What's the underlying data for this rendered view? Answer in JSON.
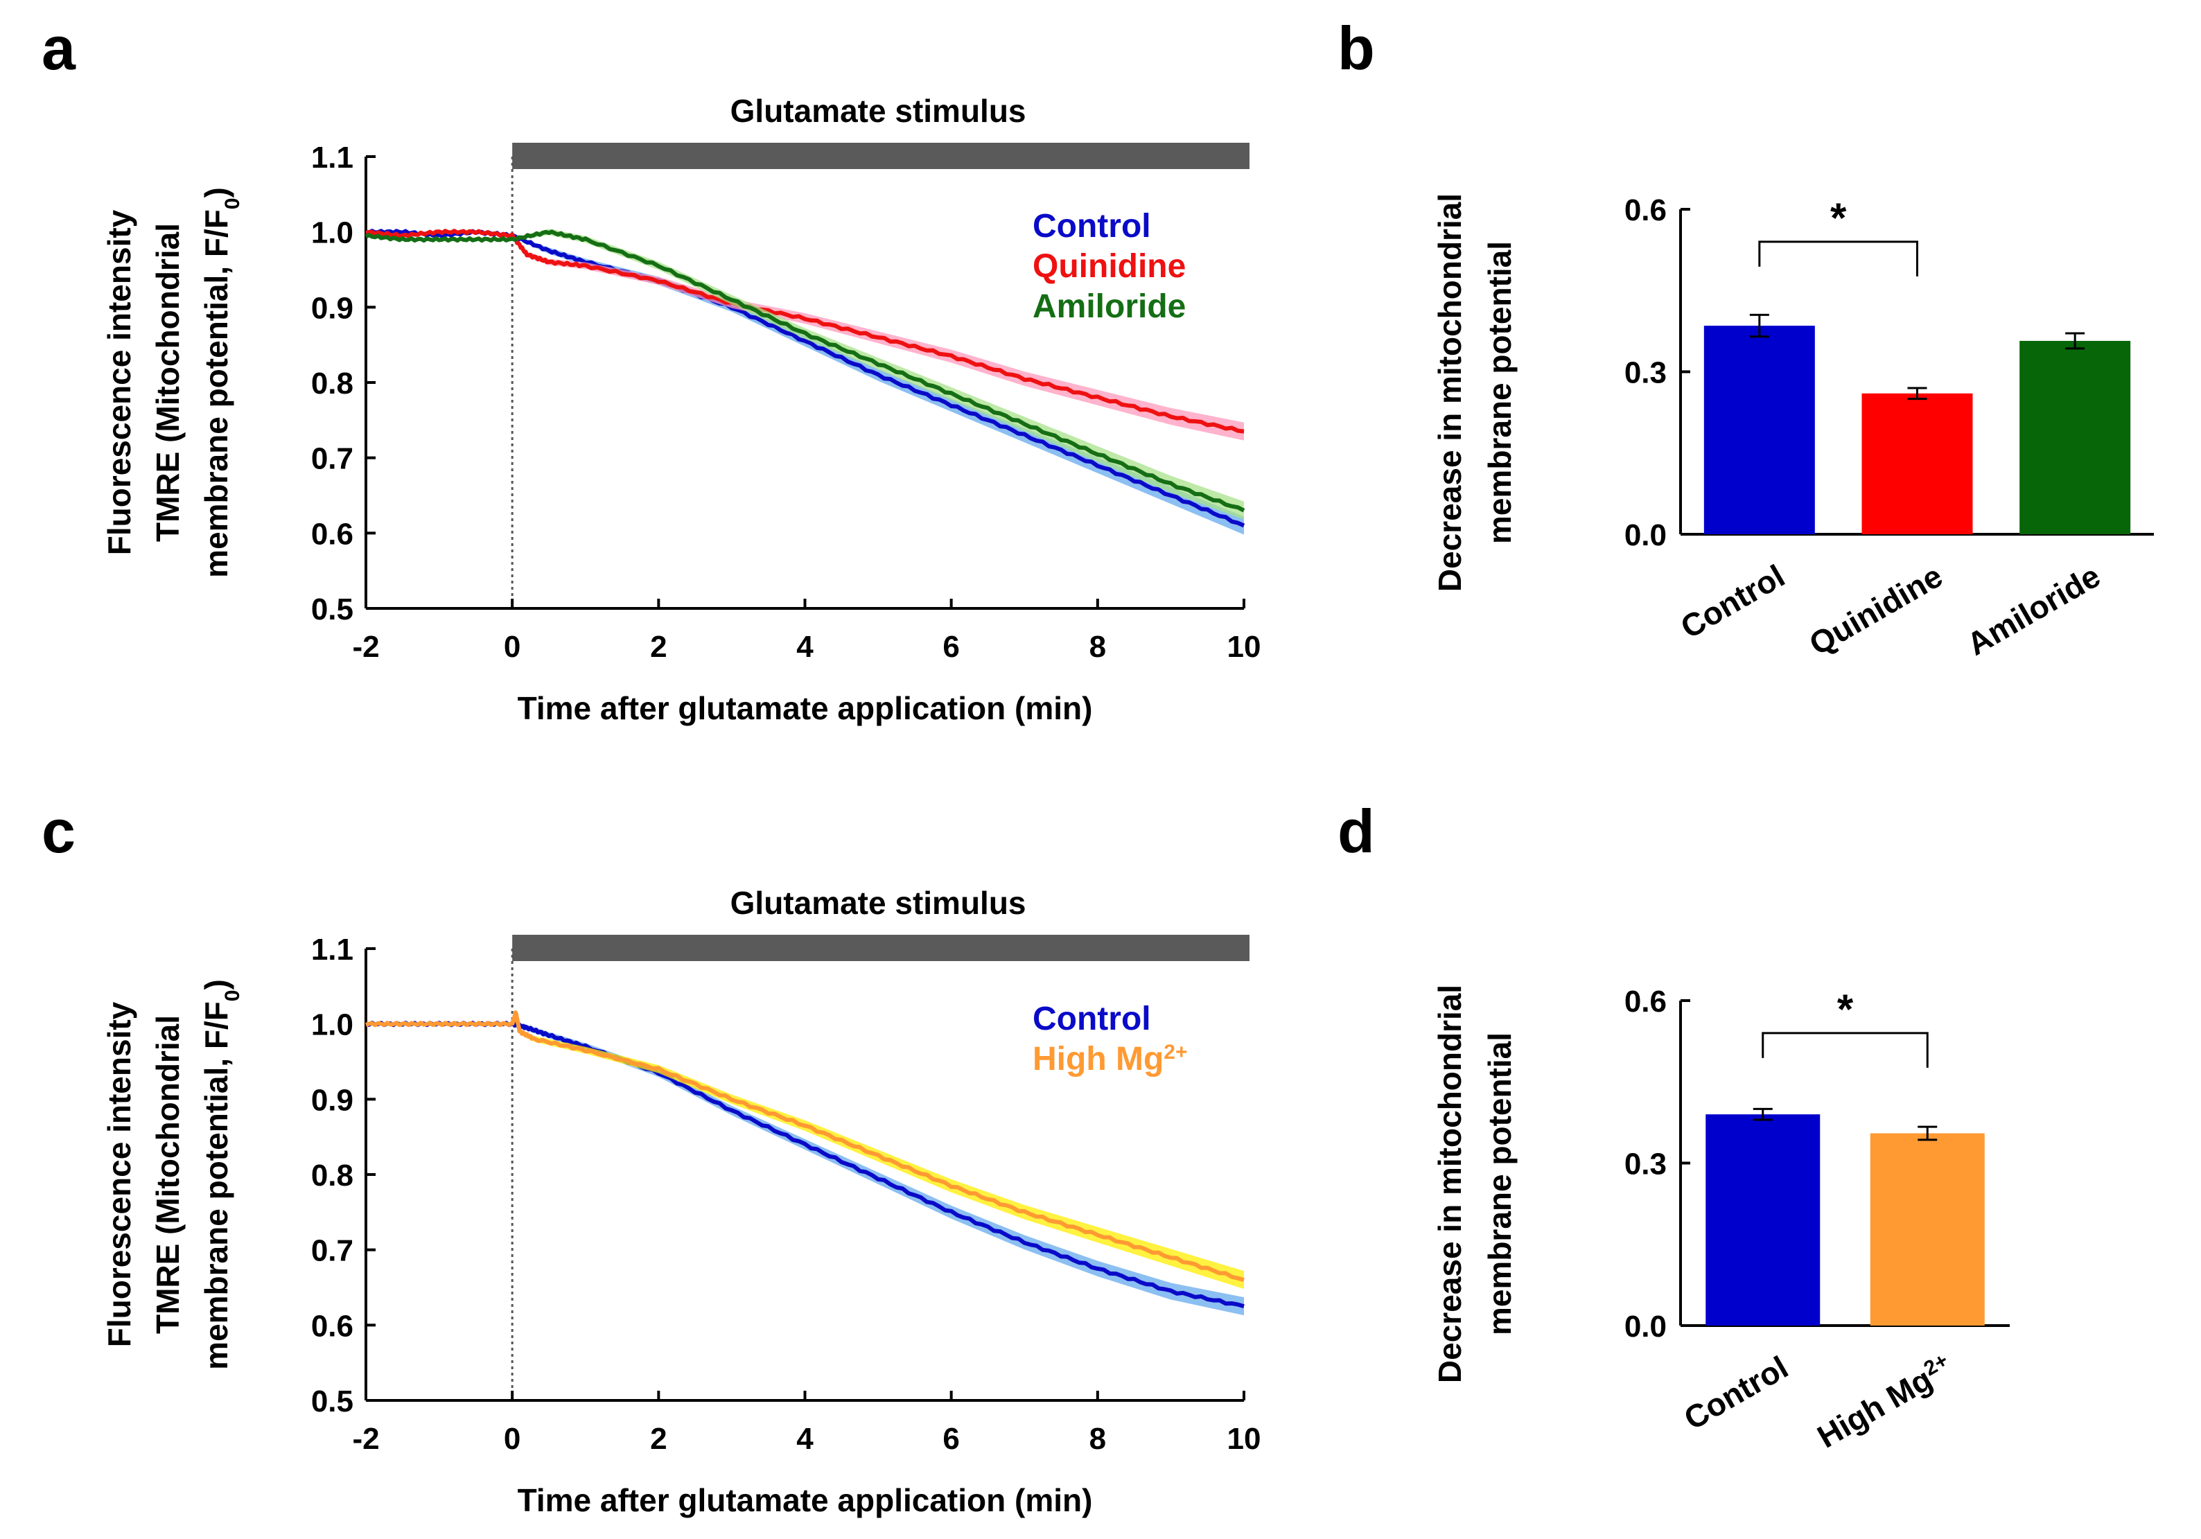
{
  "chart_data": [
    {
      "panel": "a",
      "type": "line",
      "title": "Glutamate stimulus",
      "xlabel": "Time after glutamate application (min)",
      "ylabel_lines": [
        "Fluorescence intensity",
        "TMRE (Mitochondrial",
        "membrane potential, F/F"
      ],
      "ylabel_subscript": "0",
      "ylabel_close": ")",
      "xlim": [
        -2,
        10
      ],
      "ylim": [
        0.5,
        1.1
      ],
      "xticks": [
        "-2",
        "0",
        "2",
        "4",
        "6",
        "8",
        "10"
      ],
      "yticks": [
        "1.1",
        "1.0",
        "0.9",
        "0.8",
        "0.7",
        "0.6",
        "0.5"
      ],
      "stimulus_bar": [
        0,
        10
      ],
      "marker_line_x": 0,
      "legend_position": "top-right",
      "series": [
        {
          "name": "Control",
          "color": "#0a0ac8",
          "band": "#66aaee",
          "x": [
            -2,
            -1.5,
            -1,
            -0.5,
            0,
            0.5,
            1,
            2,
            3,
            4,
            5,
            6,
            7,
            8,
            9,
            10
          ],
          "y": [
            1.0,
            1.0,
            0.995,
            1.0,
            0.995,
            0.975,
            0.96,
            0.935,
            0.9,
            0.855,
            0.81,
            0.77,
            0.73,
            0.69,
            0.65,
            0.61
          ]
        },
        {
          "name": "Quinidine",
          "color": "#ee1111",
          "band": "#ff99bb",
          "x": [
            -2,
            -1.5,
            -1,
            -0.5,
            0,
            0.2,
            0.5,
            1,
            2,
            3,
            4,
            5,
            6,
            7,
            8,
            9,
            10
          ],
          "y": [
            1.0,
            0.995,
            1.0,
            1.0,
            0.995,
            0.97,
            0.96,
            0.955,
            0.935,
            0.905,
            0.885,
            0.86,
            0.835,
            0.805,
            0.78,
            0.755,
            0.735
          ]
        },
        {
          "name": "Amiloride",
          "color": "#156e15",
          "band": "#a8e28a",
          "x": [
            -2,
            -1.5,
            -1,
            -0.5,
            0,
            0.5,
            1,
            2,
            3,
            4,
            5,
            6,
            7,
            8,
            9,
            10
          ],
          "y": [
            0.995,
            0.99,
            0.99,
            0.99,
            0.99,
            1.0,
            0.99,
            0.955,
            0.91,
            0.865,
            0.825,
            0.785,
            0.745,
            0.705,
            0.665,
            0.63
          ]
        }
      ]
    },
    {
      "panel": "b",
      "type": "bar",
      "ylabel_lines": [
        "Decrease in mitochondrial",
        "membrane potential"
      ],
      "ylim": [
        0,
        0.6
      ],
      "yticks": [
        "0.6",
        "0.3",
        "0.0"
      ],
      "categories": [
        "Control",
        "Quinidine",
        "Amiloride"
      ],
      "values": [
        0.385,
        0.26,
        0.357
      ],
      "errors": [
        0.02,
        0.01,
        0.014
      ],
      "colors": [
        "#0000cc",
        "#ff0000",
        "#076607"
      ],
      "significance": {
        "from": 0,
        "to": 1,
        "label": "*"
      }
    },
    {
      "panel": "c",
      "type": "line",
      "title": "Glutamate stimulus",
      "xlabel": "Time after glutamate application (min)",
      "ylabel_lines": [
        "Fluorescence intensity",
        "TMRE (Mitochondrial",
        "membrane potential, F/F"
      ],
      "ylabel_subscript": "0",
      "ylabel_close": ")",
      "xlim": [
        -2,
        10
      ],
      "ylim": [
        0.5,
        1.1
      ],
      "xticks": [
        "-2",
        "0",
        "2",
        "4",
        "6",
        "8",
        "10"
      ],
      "yticks": [
        "1.1",
        "1.0",
        "0.9",
        "0.8",
        "0.7",
        "0.6",
        "0.5"
      ],
      "stimulus_bar": [
        0,
        10
      ],
      "marker_line_x": 0,
      "legend_position": "top-right",
      "series": [
        {
          "name": "Control",
          "sup": "",
          "color": "#0a0ac8",
          "band": "#66aaee",
          "x": [
            -2,
            -1.5,
            -1,
            -0.5,
            0,
            0.2,
            0.5,
            1,
            2,
            3,
            4,
            5,
            6,
            7,
            8,
            9,
            10
          ],
          "y": [
            1.0,
            1.0,
            1.0,
            1.0,
            1.0,
            0.995,
            0.985,
            0.97,
            0.935,
            0.885,
            0.84,
            0.795,
            0.75,
            0.71,
            0.675,
            0.645,
            0.625
          ]
        },
        {
          "name": "High Mg",
          "sup": "2+",
          "color": "#ff9a33",
          "band": "#ffee00",
          "x": [
            -2,
            -1.5,
            -1,
            -0.5,
            0,
            0.05,
            0.1,
            0.3,
            1,
            2,
            3,
            4,
            5,
            6,
            7,
            8,
            9,
            10
          ],
          "y": [
            1.0,
            1.0,
            1.0,
            1.0,
            1.0,
            1.015,
            0.99,
            0.98,
            0.965,
            0.94,
            0.9,
            0.865,
            0.825,
            0.785,
            0.75,
            0.72,
            0.69,
            0.66
          ]
        }
      ]
    },
    {
      "panel": "d",
      "type": "bar",
      "ylabel_lines": [
        "Decrease in mitochondrial",
        "membrane potential"
      ],
      "ylim": [
        0,
        0.6
      ],
      "yticks": [
        "0.6",
        "0.3",
        "0.0"
      ],
      "categories": [
        "Control",
        "High Mg"
      ],
      "category_sups": [
        "",
        "2+"
      ],
      "values": [
        0.39,
        0.355
      ],
      "errors": [
        0.01,
        0.012
      ],
      "colors": [
        "#0000cc",
        "#ff9a33"
      ],
      "significance": {
        "from": 0,
        "to": 1,
        "label": "*"
      }
    }
  ]
}
